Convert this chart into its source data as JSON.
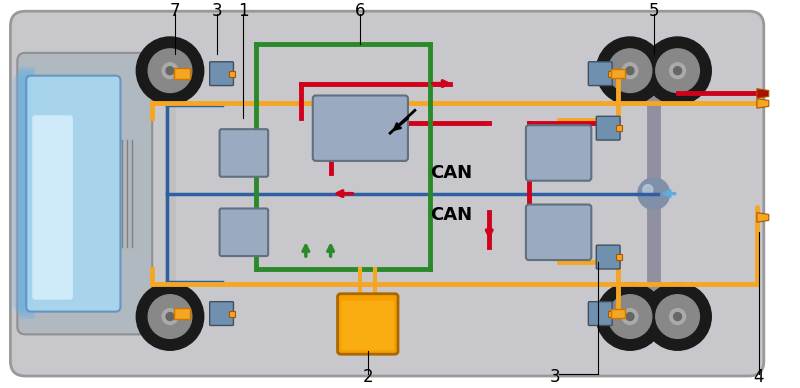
{
  "bg_color": "#d0d0d0",
  "vehicle_bg": "#c8c8c8",
  "orange": "#F5A623",
  "dark_orange": "#E8940A",
  "red": "#D0021B",
  "blue": "#2E5FA3",
  "light_blue": "#6BB5E8",
  "green": "#2A7A2A",
  "yellow_orange": "#F5A623",
  "white": "#FFFFFF",
  "black": "#000000",
  "label_1": "1",
  "label_2": "2",
  "label_3": "3",
  "label_4": "4",
  "label_5": "5",
  "label_6": "6",
  "label_7": "7",
  "can_text": "CAN",
  "figsize": [
    8.0,
    3.88
  ],
  "dpi": 100
}
